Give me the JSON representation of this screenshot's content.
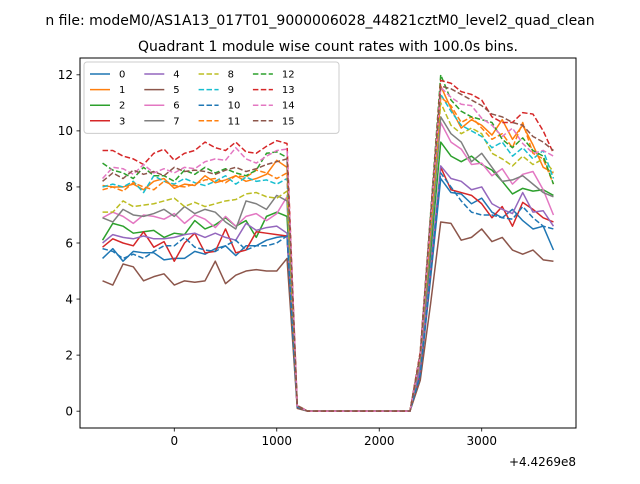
{
  "figure": {
    "suptitle": "n file: modeM0/AS1A13_017T01_9000006028_44821cztM0_level2_quad_clean",
    "title": "Quadrant 1 module wise count rates with 100.0s bins.",
    "x_offset_label": "+4.4269e8"
  },
  "chart_data": {
    "type": "line",
    "title": "Quadrant 1 module wise count rates with 100.0s bins.",
    "xlabel": "",
    "ylabel": "",
    "x_offset": "+4.4269e8",
    "xlim": [
      -920,
      3920
    ],
    "ylim": [
      -0.6,
      12.6
    ],
    "xticks": [
      0,
      1000,
      2000,
      3000
    ],
    "yticks": [
      0,
      2,
      4,
      6,
      8,
      10,
      12
    ],
    "grid": false,
    "legend": {
      "position": "top-left",
      "columns": 5
    },
    "x": [
      -700,
      -600,
      -500,
      -400,
      -300,
      -200,
      -100,
      0,
      100,
      200,
      300,
      400,
      500,
      600,
      700,
      800,
      900,
      1000,
      1100,
      1200,
      1300,
      1400,
      1500,
      1600,
      1700,
      1800,
      1900,
      2000,
      2100,
      2200,
      2300,
      2400,
      2500,
      2600,
      2700,
      2800,
      2900,
      3000,
      3100,
      3200,
      3300,
      3400,
      3500,
      3600,
      3700
    ],
    "series": [
      {
        "name": "0",
        "color": "#1f77b4",
        "dash": "solid",
        "values": [
          5.45,
          5.8,
          5.35,
          5.7,
          5.65,
          5.65,
          5.4,
          5.45,
          5.45,
          5.7,
          5.6,
          5.8,
          5.9,
          5.55,
          5.9,
          5.9,
          6.1,
          6.2,
          6.25,
          0.15,
          0,
          0,
          0,
          0,
          0,
          0,
          0,
          0,
          0,
          0,
          0,
          1.3,
          4.7,
          8.3,
          7.8,
          7.75,
          7.4,
          7.6,
          7.1,
          6.9,
          7.2,
          6.8,
          6.5,
          6.6,
          5.75
        ]
      },
      {
        "name": "1",
        "color": "#ff7f0e",
        "dash": "solid",
        "values": [
          8.05,
          8.0,
          8.0,
          8.1,
          7.9,
          8.2,
          8.3,
          7.95,
          8.1,
          8.05,
          8.4,
          8.15,
          8.25,
          8.4,
          8.2,
          8.3,
          8.45,
          8.95,
          8.7,
          0.2,
          0,
          0,
          0,
          0,
          0,
          0,
          0,
          0,
          0,
          0,
          0,
          2.0,
          6.5,
          11.6,
          10.8,
          10.1,
          10.4,
          10.2,
          9.85,
          10.4,
          9.7,
          10.2,
          9.5,
          8.7,
          8.5
        ]
      },
      {
        "name": "2",
        "color": "#2ca02c",
        "dash": "solid",
        "values": [
          6.1,
          6.7,
          6.6,
          6.35,
          6.4,
          6.45,
          6.2,
          6.35,
          6.3,
          6.8,
          6.5,
          6.65,
          6.9,
          6.6,
          6.8,
          6.2,
          6.95,
          7.1,
          6.95,
          0.2,
          0,
          0,
          0,
          0,
          0,
          0,
          0,
          0,
          0,
          0,
          0,
          1.7,
          5.6,
          9.6,
          9.1,
          8.9,
          9.1,
          8.8,
          8.6,
          8.2,
          7.75,
          7.95,
          7.85,
          7.9,
          7.7
        ]
      },
      {
        "name": "3",
        "color": "#d62728",
        "dash": "solid",
        "values": [
          5.85,
          6.15,
          6.0,
          5.9,
          6.4,
          5.85,
          6.05,
          5.35,
          6.0,
          6.35,
          5.65,
          5.7,
          6.5,
          5.65,
          5.75,
          6.4,
          6.35,
          6.3,
          6.25,
          0.15,
          0,
          0,
          0,
          0,
          0,
          0,
          0,
          0,
          0,
          0,
          0,
          1.4,
          4.9,
          8.7,
          7.9,
          7.8,
          7.7,
          7.4,
          6.9,
          7.3,
          6.6,
          7.45,
          7.2,
          6.9,
          6.75
        ]
      },
      {
        "name": "4",
        "color": "#9467bd",
        "dash": "solid",
        "values": [
          6.0,
          6.3,
          6.2,
          6.15,
          6.25,
          6.15,
          6.15,
          6.2,
          6.3,
          6.35,
          6.2,
          6.35,
          6.2,
          6.1,
          6.7,
          6.45,
          6.55,
          6.6,
          6.35,
          0.15,
          0,
          0,
          0,
          0,
          0,
          0,
          0,
          0,
          0,
          0,
          0,
          1.5,
          5.1,
          8.75,
          8.3,
          8.2,
          7.9,
          8.0,
          7.4,
          7.2,
          7.05,
          7.8,
          7.1,
          7.15,
          6.6
        ]
      },
      {
        "name": "5",
        "color": "#8c564b",
        "dash": "solid",
        "values": [
          4.65,
          4.5,
          5.25,
          5.15,
          4.65,
          4.8,
          4.9,
          4.5,
          4.65,
          4.6,
          4.65,
          5.35,
          4.55,
          4.85,
          5.0,
          5.05,
          5.0,
          5.0,
          5.45,
          0.1,
          0,
          0,
          0,
          0,
          0,
          0,
          0,
          0,
          0,
          0,
          0,
          1.1,
          3.8,
          6.75,
          6.7,
          6.1,
          6.2,
          6.5,
          6.05,
          6.2,
          5.75,
          5.6,
          5.75,
          5.4,
          5.35
        ]
      },
      {
        "name": "6",
        "color": "#e377c2",
        "dash": "solid",
        "values": [
          6.9,
          7.1,
          6.95,
          6.7,
          7.0,
          6.95,
          6.85,
          7.05,
          6.7,
          7.0,
          6.85,
          6.55,
          6.95,
          6.6,
          6.95,
          7.05,
          6.8,
          7.05,
          7.65,
          0.2,
          0,
          0,
          0,
          0,
          0,
          0,
          0,
          0,
          0,
          0,
          0,
          1.8,
          6.1,
          10.3,
          9.6,
          9.35,
          8.8,
          8.85,
          8.4,
          8.65,
          8.1,
          8.45,
          8.55,
          7.9,
          7.0
        ]
      },
      {
        "name": "7",
        "color": "#7f7f7f",
        "dash": "solid",
        "values": [
          6.9,
          6.75,
          7.2,
          7.0,
          6.95,
          7.05,
          7.2,
          6.95,
          7.3,
          7.05,
          7.2,
          7.1,
          6.75,
          6.5,
          7.5,
          7.4,
          7.2,
          7.7,
          7.5,
          0.2,
          0,
          0,
          0,
          0,
          0,
          0,
          0,
          0,
          0,
          0,
          0,
          1.8,
          6.0,
          10.5,
          9.9,
          9.6,
          8.9,
          9.2,
          8.7,
          8.2,
          8.25,
          8.4,
          8.1,
          7.8,
          7.65
        ]
      },
      {
        "name": "8",
        "color": "#bcbd22",
        "dash": "dashed",
        "values": [
          7.1,
          7.1,
          7.5,
          7.3,
          7.35,
          7.4,
          7.5,
          7.6,
          7.3,
          7.45,
          7.3,
          7.4,
          7.5,
          7.55,
          7.75,
          7.8,
          7.65,
          7.6,
          7.85,
          0.2,
          0,
          0,
          0,
          0,
          0,
          0,
          0,
          0,
          0,
          0,
          0,
          1.9,
          6.4,
          11.0,
          10.2,
          9.9,
          10.1,
          9.9,
          9.2,
          9.0,
          8.75,
          9.1,
          8.8,
          9.0,
          8.55
        ]
      },
      {
        "name": "9",
        "color": "#17becf",
        "dash": "dashed",
        "values": [
          8.0,
          8.1,
          8.0,
          8.2,
          7.8,
          8.4,
          8.2,
          8.1,
          8.3,
          8.15,
          8.05,
          8.2,
          8.4,
          8.1,
          8.35,
          8.2,
          8.25,
          8.1,
          8.3,
          0.2,
          0,
          0,
          0,
          0,
          0,
          0,
          0,
          0,
          0,
          0,
          0,
          2.0,
          6.6,
          11.3,
          10.7,
          10.2,
          10.0,
          9.8,
          9.4,
          9.6,
          9.1,
          9.4,
          9.0,
          9.3,
          8.3
        ]
      },
      {
        "name": "10",
        "color": "#1f77b4",
        "dash": "dashed",
        "values": [
          5.8,
          5.7,
          5.45,
          5.6,
          5.45,
          5.7,
          5.9,
          5.9,
          6.2,
          5.85,
          5.75,
          5.7,
          5.9,
          6.1,
          5.75,
          5.9,
          5.9,
          6.0,
          6.25,
          0.15,
          0,
          0,
          0,
          0,
          0,
          0,
          0,
          0,
          0,
          0,
          0,
          1.3,
          4.9,
          8.5,
          8.0,
          7.5,
          7.1,
          7.0,
          7.0,
          6.9,
          6.85,
          7.3,
          6.9,
          6.6,
          6.5
        ]
      },
      {
        "name": "11",
        "color": "#ff7f0e",
        "dash": "dashed",
        "values": [
          7.9,
          8.0,
          7.85,
          8.15,
          8.0,
          7.9,
          8.2,
          8.05,
          8.0,
          8.1,
          8.25,
          8.3,
          8.15,
          8.4,
          8.35,
          8.6,
          8.5,
          8.3,
          8.5,
          0.2,
          0,
          0,
          0,
          0,
          0,
          0,
          0,
          0,
          0,
          0,
          0,
          2.0,
          6.5,
          11.2,
          10.9,
          10.3,
          10.5,
          10.1,
          9.7,
          9.9,
          9.4,
          10.3,
          9.2,
          9.0,
          8.1
        ]
      },
      {
        "name": "12",
        "color": "#2ca02c",
        "dash": "dashed",
        "values": [
          8.85,
          8.6,
          8.5,
          8.3,
          8.7,
          8.4,
          8.4,
          8.2,
          8.6,
          8.45,
          8.7,
          8.5,
          8.65,
          8.5,
          8.4,
          8.6,
          9.2,
          9.25,
          9.05,
          0.2,
          0,
          0,
          0,
          0,
          0,
          0,
          0,
          0,
          0,
          0,
          0,
          2.1,
          7.0,
          12.0,
          11.1,
          10.7,
          10.5,
          10.4,
          10.3,
          9.7,
          9.4,
          9.75,
          9.3,
          9.1,
          8.1
        ]
      },
      {
        "name": "13",
        "color": "#d62728",
        "dash": "dashed",
        "values": [
          9.3,
          9.3,
          9.1,
          9.0,
          8.8,
          9.2,
          9.35,
          8.95,
          9.2,
          9.3,
          9.6,
          9.4,
          9.3,
          9.6,
          9.25,
          9.2,
          9.45,
          9.65,
          9.55,
          0.2,
          0,
          0,
          0,
          0,
          0,
          0,
          0,
          0,
          0,
          0,
          0,
          2.1,
          6.9,
          11.8,
          11.7,
          11.4,
          11.3,
          11.1,
          10.5,
          10.3,
          10.3,
          10.65,
          10.6,
          10.0,
          9.2
        ]
      },
      {
        "name": "14",
        "color": "#e377c2",
        "dash": "dashed",
        "values": [
          8.3,
          8.7,
          8.65,
          8.45,
          8.8,
          8.5,
          8.65,
          8.5,
          8.7,
          8.65,
          8.9,
          9.0,
          8.95,
          9.4,
          9.0,
          8.85,
          9.1,
          9.3,
          9.35,
          0.2,
          0,
          0,
          0,
          0,
          0,
          0,
          0,
          0,
          0,
          0,
          0,
          2.0,
          6.8,
          11.55,
          11.2,
          10.95,
          10.9,
          10.45,
          10.2,
          9.8,
          10.1,
          9.55,
          9.2,
          9.3,
          9.1
        ]
      },
      {
        "name": "15",
        "color": "#8c564b",
        "dash": "dashed",
        "values": [
          8.2,
          8.5,
          8.3,
          8.6,
          8.45,
          8.55,
          8.4,
          8.7,
          8.55,
          8.6,
          8.55,
          8.45,
          8.6,
          8.7,
          8.55,
          8.65,
          8.8,
          8.9,
          9.0,
          0.2,
          0,
          0,
          0,
          0,
          0,
          0,
          0,
          0,
          0,
          0,
          0,
          2.0,
          6.9,
          11.6,
          11.5,
          11.3,
          11.1,
          10.9,
          10.6,
          10.5,
          10.3,
          10.2,
          9.8,
          9.6,
          9.3
        ]
      }
    ]
  }
}
